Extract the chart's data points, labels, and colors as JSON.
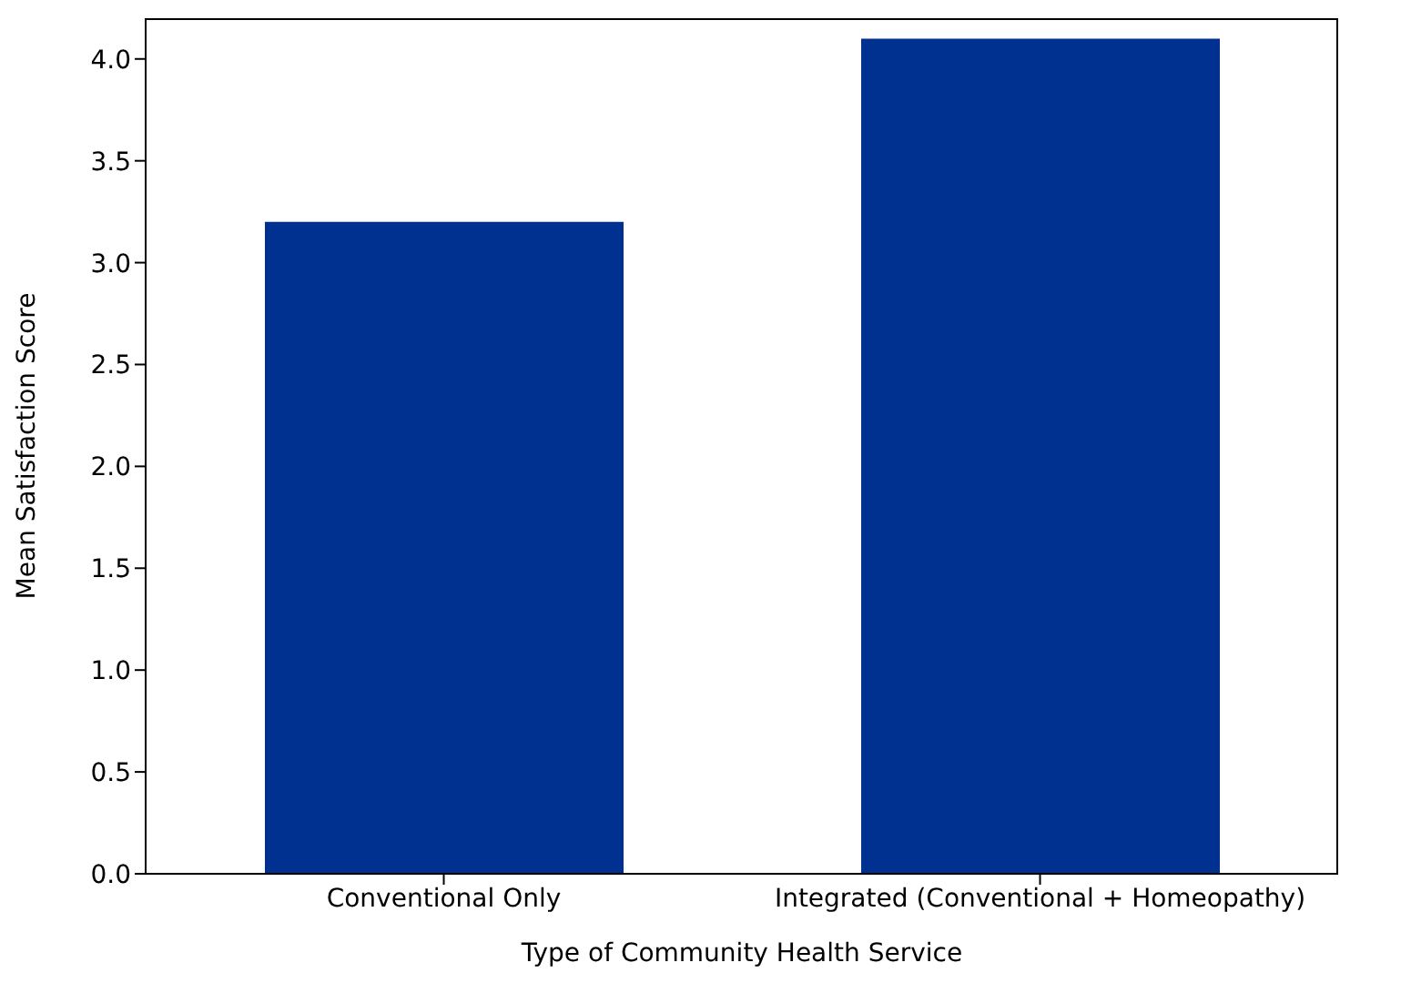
{
  "chart_data": {
    "type": "bar",
    "xlabel": "Type of Community Health Service",
    "ylabel": "Mean Satisfaction Score",
    "categories": [
      "Conventional Only",
      "Integrated (Conventional + Homeopathy)"
    ],
    "values": [
      3.2,
      4.1
    ],
    "color": "#003090",
    "ylim": [
      0,
      4.2
    ],
    "yticks": [
      {
        "value": 0,
        "label": "0.0"
      },
      {
        "value": 0.5,
        "label": "0.5"
      },
      {
        "value": 1,
        "label": "1.0"
      },
      {
        "value": 1.5,
        "label": "1.5"
      },
      {
        "value": 2,
        "label": "2.0"
      },
      {
        "value": 2.5,
        "label": "2.5"
      },
      {
        "value": 3,
        "label": "3.0"
      },
      {
        "value": 3.5,
        "label": "3.5"
      },
      {
        "value": 4,
        "label": "4.0"
      }
    ],
    "grid": false,
    "legend": false
  }
}
